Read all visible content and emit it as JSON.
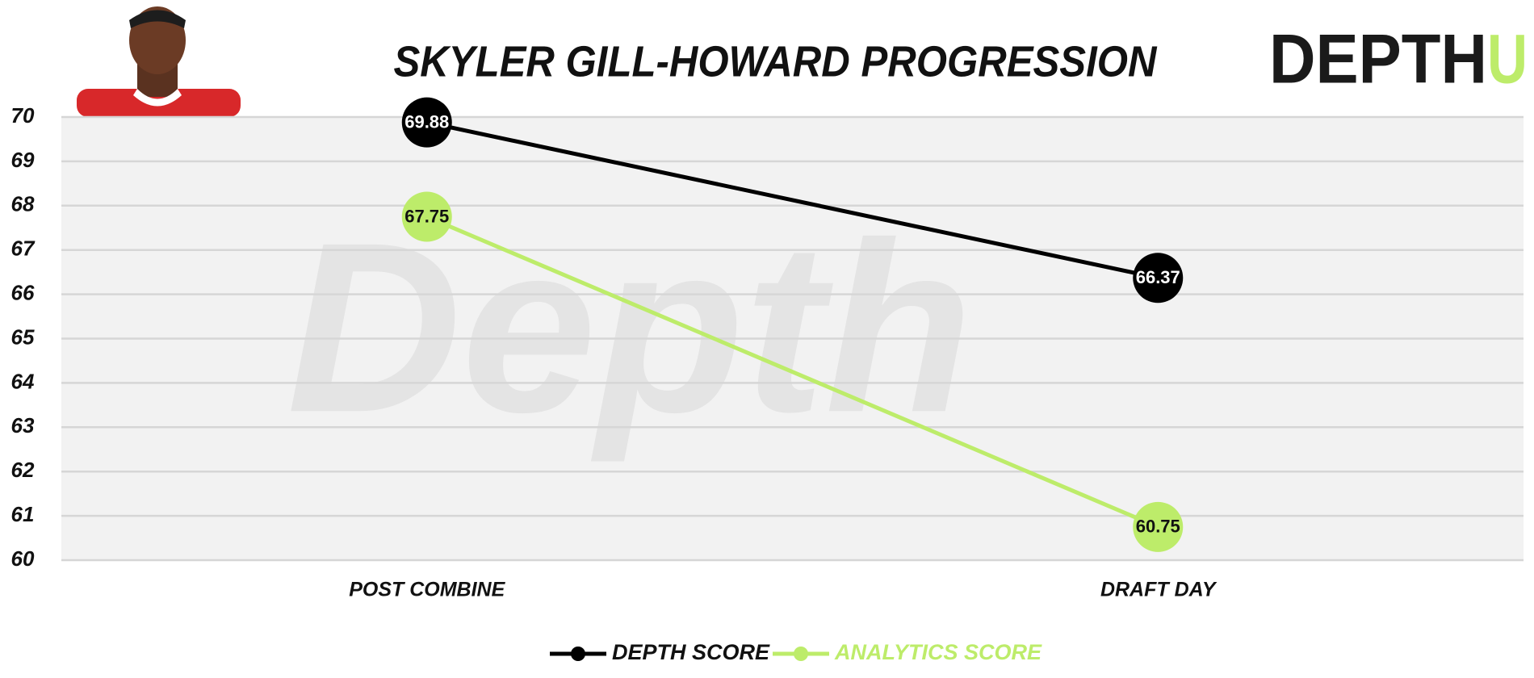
{
  "chart_data": {
    "type": "line",
    "title": "SKYLER GILL-HOWARD PROGRESSION",
    "logo": {
      "text": "DEPTH",
      "accent": "U"
    },
    "watermark": "Depth",
    "categories": [
      "POST COMBINE",
      "DRAFT DAY"
    ],
    "series": [
      {
        "name": "DEPTH SCORE",
        "color": "#000000",
        "values": [
          69.88,
          66.37
        ]
      },
      {
        "name": "ANALYTICS SCORE",
        "color": "#bdec6a",
        "values": [
          67.75,
          60.75
        ]
      }
    ],
    "ylim": [
      60,
      70
    ],
    "yticks": [
      60,
      61,
      62,
      63,
      64,
      65,
      66,
      67,
      68,
      69,
      70
    ],
    "grid": true
  }
}
